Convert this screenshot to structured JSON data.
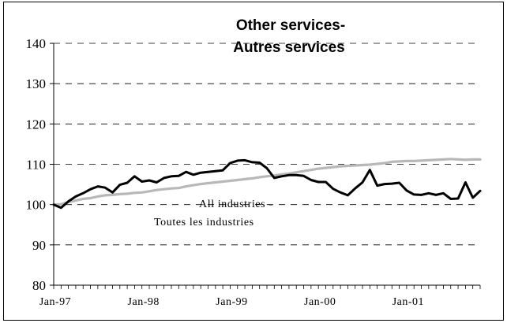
{
  "chart_data": {
    "type": "line",
    "title": [
      "Other services-",
      "Autres services"
    ],
    "xlabel": "",
    "ylabel": "",
    "ylim": [
      80,
      140
    ],
    "yticks": [
      80,
      90,
      100,
      110,
      120,
      130,
      140
    ],
    "xticks": [
      {
        "label": "Jan-97",
        "index": 0
      },
      {
        "label": "Jan-98",
        "index": 12
      },
      {
        "label": "Jan-99",
        "index": 24
      },
      {
        "label": "Jan-00",
        "index": 36
      },
      {
        "label": "Jan-01",
        "index": 48
      }
    ],
    "x_start": "Jan-97",
    "x_end": "Nov-01",
    "grid": "horizontal dashed",
    "annotations": [
      "All industries -",
      "Toutes les industries"
    ],
    "series": [
      {
        "color": "#000000",
        "values": [
          100.0,
          99.2,
          100.8,
          102.0,
          102.8,
          103.8,
          104.5,
          104.2,
          103.0,
          104.9,
          105.4,
          107.0,
          105.7,
          106.0,
          105.5,
          106.6,
          107.0,
          107.1,
          108.1,
          107.4,
          107.9,
          108.1,
          108.3,
          108.5,
          110.3,
          110.9,
          111.0,
          110.5,
          110.4,
          109.0,
          106.6,
          107.0,
          107.3,
          107.3,
          107.1,
          106.1,
          105.6,
          105.6,
          103.9,
          103.0,
          102.3,
          104.0,
          105.5,
          108.6,
          104.7,
          105.1,
          105.2,
          105.4,
          103.5,
          102.5,
          102.4,
          102.8,
          102.4,
          102.8,
          101.4,
          101.5,
          105.5,
          101.7,
          103.4
        ]
      },
      {
        "color": "#b8b8b8",
        "values": [
          100.0,
          100.1,
          100.6,
          101.0,
          101.4,
          101.6,
          102.0,
          102.3,
          102.4,
          102.6,
          102.7,
          102.9,
          103.0,
          103.3,
          103.6,
          103.8,
          104.0,
          104.1,
          104.5,
          104.8,
          105.1,
          105.3,
          105.5,
          105.7,
          105.9,
          106.1,
          106.3,
          106.5,
          106.8,
          107.0,
          107.2,
          107.5,
          107.7,
          108.0,
          108.3,
          108.6,
          108.9,
          109.1,
          109.3,
          109.5,
          109.6,
          109.7,
          109.8,
          109.9,
          110.1,
          110.3,
          110.6,
          110.7,
          110.8,
          110.8,
          110.9,
          111.0,
          111.1,
          111.2,
          111.3,
          111.2,
          111.1,
          111.2,
          111.2
        ]
      }
    ]
  }
}
